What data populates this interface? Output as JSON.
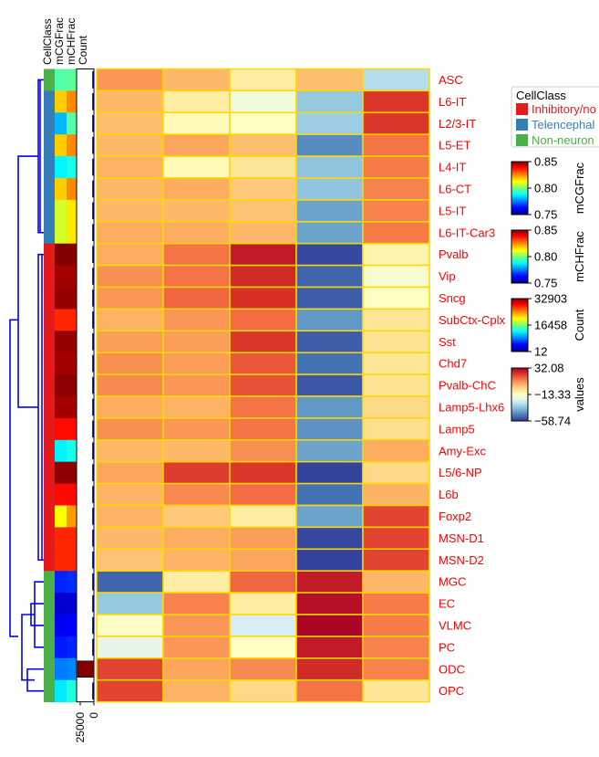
{
  "chart_data": {
    "type": "heatmap",
    "rows": [
      "ASC",
      "L6-IT",
      "L2/3-IT",
      "L5-ET",
      "L4-IT",
      "L6-CT",
      "L5-IT",
      "L6-IT-Car3",
      "Pvalb",
      "Vip",
      "Sncg",
      "SubCtx-Cplx",
      "Sst",
      "Chd7",
      "Pvalb-ChC",
      "Lamp5-Lhx6",
      "Lamp5",
      "Amy-Exc",
      "L5/6-NP",
      "L6b",
      "Foxp2",
      "MSN-D1",
      "MSN-D2",
      "MGC",
      "EC",
      "VLMC",
      "PC",
      "ODC",
      "OPC"
    ],
    "columns_count": 5,
    "values": [
      [
        8,
        3,
        -8,
        2,
        -30
      ],
      [
        3,
        -8,
        -18,
        -35,
        22
      ],
      [
        2,
        -12,
        -14,
        -34,
        22
      ],
      [
        3,
        6,
        2,
        -46,
        13
      ],
      [
        4,
        -12,
        -6,
        -36,
        12
      ],
      [
        3,
        5,
        0,
        -36,
        11
      ],
      [
        3,
        3,
        1,
        -42,
        11
      ],
      [
        5,
        5,
        3,
        -42,
        12
      ],
      [
        5,
        13,
        27,
        -56,
        -10
      ],
      [
        9,
        13,
        24,
        -52,
        -16
      ],
      [
        8,
        15,
        23,
        -53,
        -14
      ],
      [
        4,
        8,
        14,
        -44,
        -6
      ],
      [
        7,
        7,
        22,
        -53,
        -5
      ],
      [
        9,
        7,
        17,
        -50,
        -6
      ],
      [
        10,
        8,
        18,
        -54,
        -5
      ],
      [
        5,
        4,
        13,
        -44,
        -3
      ],
      [
        9,
        8,
        13,
        -45,
        -4
      ],
      [
        3,
        3,
        9,
        -42,
        5
      ],
      [
        6,
        21,
        22,
        -57,
        -3
      ],
      [
        4,
        10,
        14,
        -50,
        4
      ],
      [
        4,
        0,
        -8,
        -42,
        20
      ],
      [
        3,
        5,
        7,
        -56,
        20
      ],
      [
        1,
        4,
        6,
        -57,
        20
      ],
      [
        -52,
        -8,
        15,
        27,
        3
      ],
      [
        -35,
        11,
        -8,
        29,
        12
      ],
      [
        -14,
        8,
        -24,
        31,
        12
      ],
      [
        -20,
        8,
        -14,
        27,
        11
      ],
      [
        20,
        6,
        10,
        24,
        11
      ],
      [
        20,
        4,
        -3,
        13,
        -6
      ]
    ],
    "row_annotations": {
      "CellClass": [
        "Non-neuron",
        "Telencephalon",
        "Telencephalon",
        "Telencephalon",
        "Telencephalon",
        "Telencephalon",
        "Telencephalon",
        "Telencephalon",
        "Inhibitory/non-telencephalon",
        "Inhibitory/non-telencephalon",
        "Inhibitory/non-telencephalon",
        "Inhibitory/non-telencephalon",
        "Inhibitory/non-telencephalon",
        "Inhibitory/non-telencephalon",
        "Inhibitory/non-telencephalon",
        "Inhibitory/non-telencephalon",
        "Inhibitory/non-telencephalon",
        "Inhibitory/non-telencephalon",
        "Inhibitory/non-telencephalon",
        "Inhibitory/non-telencephalon",
        "Inhibitory/non-telencephalon",
        "Inhibitory/non-telencephalon",
        "Inhibitory/non-telencephalon",
        "Non-neuron",
        "Non-neuron",
        "Non-neuron",
        "Non-neuron",
        "Non-neuron",
        "Non-neuron"
      ],
      "mCGFrac": [
        0.796,
        0.818,
        0.781,
        0.818,
        0.787,
        0.818,
        0.808,
        0.808,
        0.85,
        0.847,
        0.848,
        0.835,
        0.848,
        0.847,
        0.849,
        0.847,
        0.838,
        0.787,
        0.849,
        0.838,
        0.812,
        0.835,
        0.835,
        0.766,
        0.757,
        0.76,
        0.765,
        0.775,
        0.786
      ],
      "mCHFrac": [
        0.797,
        0.825,
        0.796,
        0.825,
        0.79,
        0.825,
        0.815,
        0.815,
        0.85,
        0.847,
        0.848,
        0.835,
        0.848,
        0.847,
        0.849,
        0.847,
        0.838,
        0.79,
        0.849,
        0.838,
        0.823,
        0.835,
        0.835,
        0.767,
        0.757,
        0.761,
        0.766,
        0.776,
        0.791
      ],
      "Count": [
        900,
        120,
        80,
        100,
        80,
        150,
        70,
        50,
        60,
        60,
        60,
        800,
        200,
        300,
        250,
        150,
        60,
        60,
        60,
        60,
        700,
        2200,
        2000,
        700,
        50,
        50,
        50,
        32903,
        50
      ]
    },
    "annotation_headers": [
      "CellClass",
      "mCGFrac",
      "mCHFrac",
      "Count"
    ],
    "count_axis_ticks": [
      "25000",
      "0"
    ],
    "legend": {
      "title": "CellClass",
      "items": [
        {
          "label": "Inhibitory/no",
          "color": "#e41a1c"
        },
        {
          "label": "Telencephal",
          "color": "#377eb8"
        },
        {
          "label": "Non-neuron",
          "color": "#4daf4a"
        }
      ]
    },
    "colorbars": [
      {
        "label": "mCGFrac",
        "ticks": [
          "0.85",
          "0.80",
          "0.75"
        ],
        "min": 0.75,
        "max": 0.85,
        "cmap": "jet"
      },
      {
        "label": "mCHFrac",
        "ticks": [
          "0.85",
          "0.80",
          "0.75"
        ],
        "min": 0.75,
        "max": 0.85,
        "cmap": "jet"
      },
      {
        "label": "Count",
        "ticks": [
          "32903",
          "16458",
          "12"
        ],
        "min": 12,
        "max": 32903,
        "cmap": "jet"
      },
      {
        "label": "values",
        "ticks": [
          "32.08",
          "−13.33",
          "−58.74"
        ],
        "min": -58.74,
        "max": 32.08,
        "cmap": "RdYlBu_r"
      }
    ],
    "colors": {
      "row_label": "#ff0000",
      "dendrogram": "#0000ff",
      "cell_border": "#ffd700",
      "count_bar_edge": "#000000"
    }
  }
}
